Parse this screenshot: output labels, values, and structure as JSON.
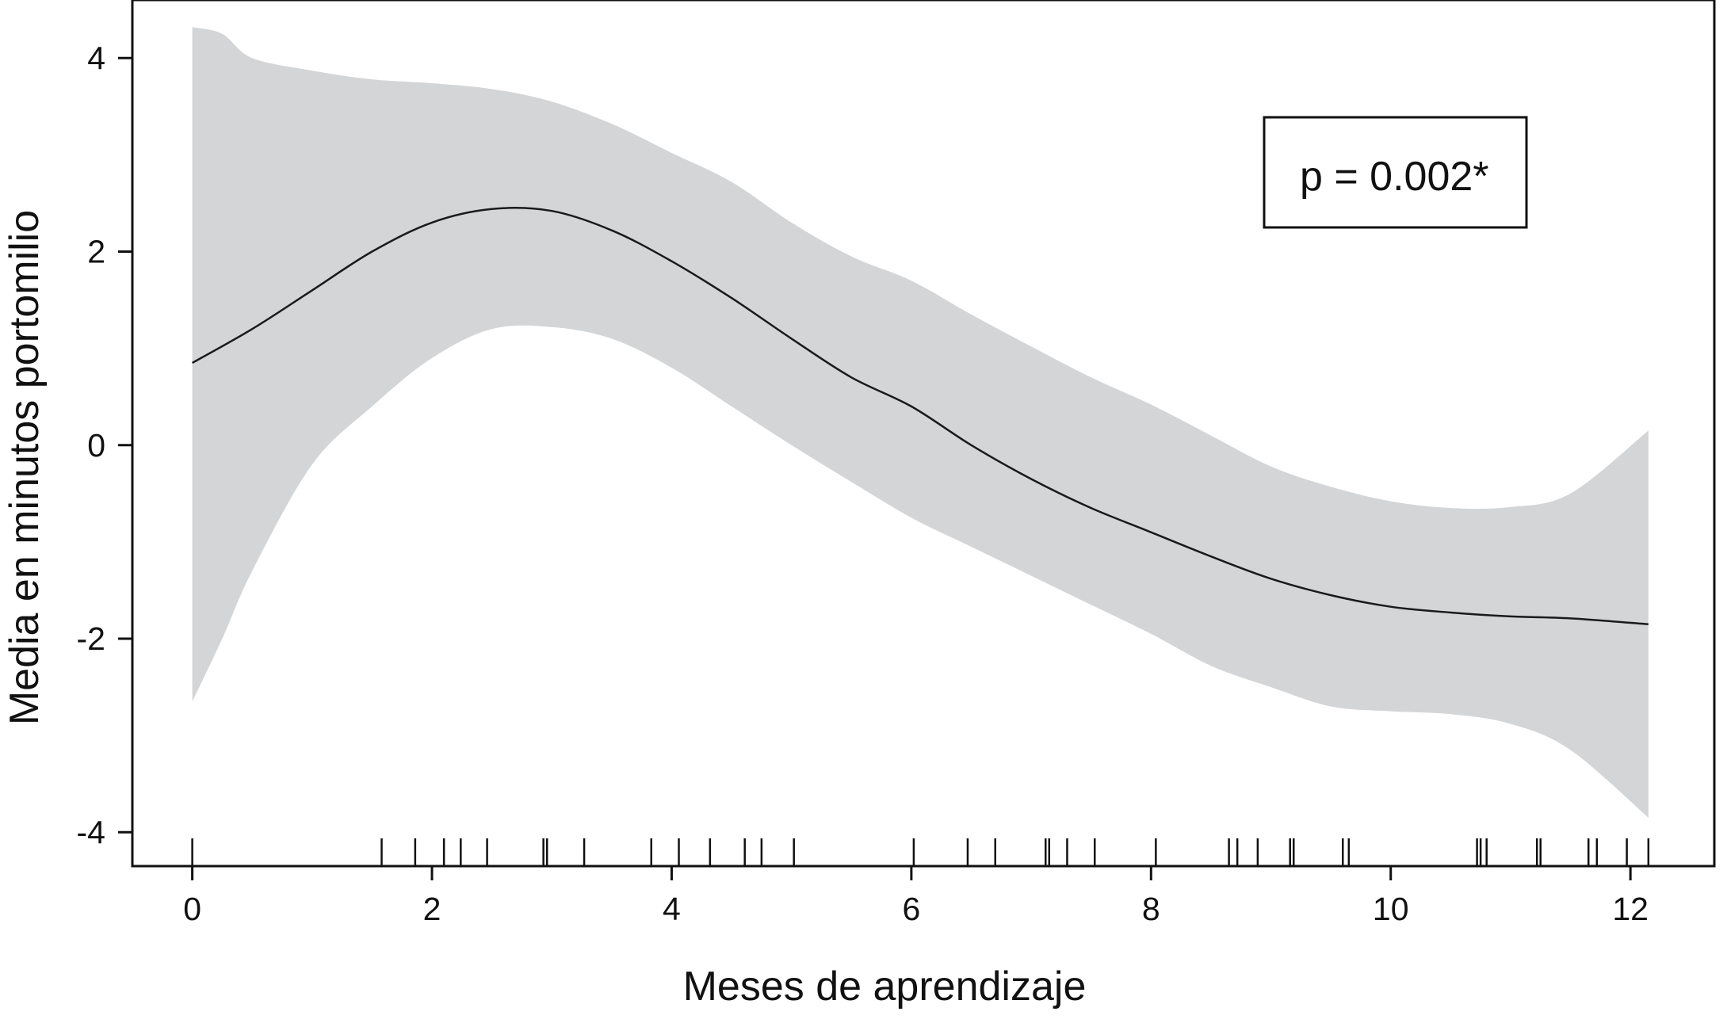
{
  "chart_data": {
    "type": "line",
    "title": "",
    "xlabel": "Meses de aprendizaje",
    "ylabel": "Media en minutos portomilio",
    "xlim": [
      -0.5,
      12.7
    ],
    "ylim": [
      -4.35,
      4.6
    ],
    "x_ticks": [
      0,
      2,
      4,
      6,
      8,
      10,
      12
    ],
    "x_tick_labels": [
      "0",
      "2",
      "4",
      "6",
      "8",
      "10",
      "12"
    ],
    "y_ticks": [
      4,
      2,
      0,
      -2,
      -4
    ],
    "y_tick_labels": [
      "4",
      "2",
      "0",
      "-2",
      "-4"
    ],
    "grid": false,
    "annotation": "p = 0.002*",
    "series": [
      {
        "type": "line",
        "x": [
          0,
          0.5,
          1,
          1.5,
          2,
          2.5,
          3,
          3.5,
          4,
          4.5,
          5,
          5.5,
          6,
          6.5,
          7,
          7.5,
          8,
          8.5,
          9,
          9.5,
          10,
          10.5,
          11,
          11.5,
          12.15
        ],
        "values": [
          0.85,
          1.2,
          1.6,
          2.0,
          2.3,
          2.44,
          2.42,
          2.22,
          1.9,
          1.52,
          1.1,
          0.7,
          0.4,
          0.0,
          -0.35,
          -0.65,
          -0.9,
          -1.15,
          -1.38,
          -1.55,
          -1.67,
          -1.73,
          -1.77,
          -1.79,
          -1.85
        ]
      },
      {
        "type": "band",
        "x": [
          0,
          0.25,
          0.5,
          1,
          1.5,
          2,
          2.5,
          3,
          3.5,
          4,
          4.5,
          5,
          5.5,
          6,
          6.5,
          7,
          7.5,
          8,
          8.5,
          9,
          9.5,
          10,
          10.5,
          11,
          11.5,
          12.15
        ],
        "upper": [
          4.32,
          4.25,
          4.0,
          3.87,
          3.78,
          3.74,
          3.68,
          3.55,
          3.32,
          3.02,
          2.72,
          2.3,
          1.95,
          1.7,
          1.35,
          1.02,
          0.7,
          0.42,
          0.1,
          -0.22,
          -0.43,
          -0.58,
          -0.65,
          -0.64,
          -0.5,
          0.15
        ],
        "lower": [
          -2.65,
          -2.0,
          -1.3,
          -0.2,
          0.4,
          0.9,
          1.2,
          1.22,
          1.1,
          0.8,
          0.4,
          0.0,
          -0.38,
          -0.75,
          -1.05,
          -1.35,
          -1.65,
          -1.95,
          -2.28,
          -2.5,
          -2.7,
          -2.75,
          -2.78,
          -2.88,
          -3.15,
          -3.85
        ]
      }
    ],
    "rug_x": [
      0,
      1.58,
      1.86,
      2.1,
      2.24,
      2.46,
      2.93,
      2.96,
      3.27,
      3.83,
      4.06,
      4.32,
      4.61,
      4.75,
      5.02,
      6.02,
      6.47,
      6.7,
      7.12,
      7.15,
      7.3,
      7.53,
      8.04,
      8.65,
      8.72,
      8.89,
      9.16,
      9.19,
      9.6,
      9.65,
      10.72,
      10.75,
      10.8,
      11.22,
      11.25,
      11.65,
      11.72,
      11.97,
      12.15
    ],
    "colors": {
      "band": "#d4d5d7",
      "line": "#1a1a1a",
      "axis": "#111111"
    }
  }
}
